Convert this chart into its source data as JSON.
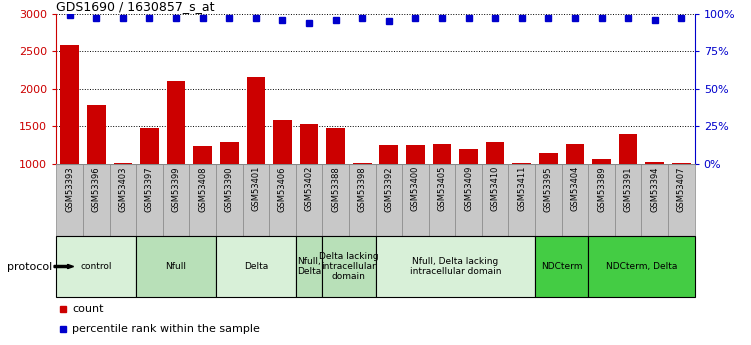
{
  "title": "GDS1690 / 1630857_s_at",
  "samples": [
    "GSM53393",
    "GSM53396",
    "GSM53403",
    "GSM53397",
    "GSM53399",
    "GSM53408",
    "GSM53390",
    "GSM53401",
    "GSM53406",
    "GSM53402",
    "GSM53388",
    "GSM53398",
    "GSM53392",
    "GSM53400",
    "GSM53405",
    "GSM53409",
    "GSM53410",
    "GSM53411",
    "GSM53395",
    "GSM53404",
    "GSM53389",
    "GSM53391",
    "GSM53394",
    "GSM53407"
  ],
  "counts": [
    2580,
    1780,
    1010,
    1480,
    2100,
    1240,
    1290,
    2160,
    1580,
    1530,
    1480,
    1010,
    1250,
    1250,
    1270,
    1200,
    1290,
    1010,
    1150,
    1270,
    1060,
    1400,
    1020,
    1010
  ],
  "percentiles": [
    99,
    97,
    97,
    97,
    97,
    97,
    97,
    97,
    96,
    94,
    96,
    97,
    95,
    97,
    97,
    97,
    97,
    97,
    97,
    97,
    97,
    97,
    96,
    97
  ],
  "bar_color": "#cc0000",
  "dot_color": "#0000cc",
  "ylim_left": [
    1000,
    3000
  ],
  "ylim_right": [
    0,
    100
  ],
  "yticks_left": [
    1000,
    1500,
    2000,
    2500,
    3000
  ],
  "yticks_right": [
    0,
    25,
    50,
    75,
    100
  ],
  "protocol_groups": [
    {
      "label": "control",
      "start": 0,
      "end": 2,
      "color": "#d8f0d8"
    },
    {
      "label": "Nfull",
      "start": 3,
      "end": 5,
      "color": "#b8e0b8"
    },
    {
      "label": "Delta",
      "start": 6,
      "end": 8,
      "color": "#d8f0d8"
    },
    {
      "label": "Nfull,\nDelta",
      "start": 9,
      "end": 9,
      "color": "#b8e0b8"
    },
    {
      "label": "Delta lacking\nintracellular\ndomain",
      "start": 10,
      "end": 11,
      "color": "#b8e0b8"
    },
    {
      "label": "Nfull, Delta lacking\nintracellular domain",
      "start": 12,
      "end": 17,
      "color": "#d8f0d8"
    },
    {
      "label": "NDCterm",
      "start": 18,
      "end": 19,
      "color": "#44cc44"
    },
    {
      "label": "NDCterm, Delta",
      "start": 20,
      "end": 23,
      "color": "#44cc44"
    }
  ],
  "protocol_label": "protocol",
  "legend_count_label": "count",
  "legend_percentile_label": "percentile rank within the sample",
  "xtick_bg_color": "#c8c8c8",
  "xtick_border_color": "#888888"
}
